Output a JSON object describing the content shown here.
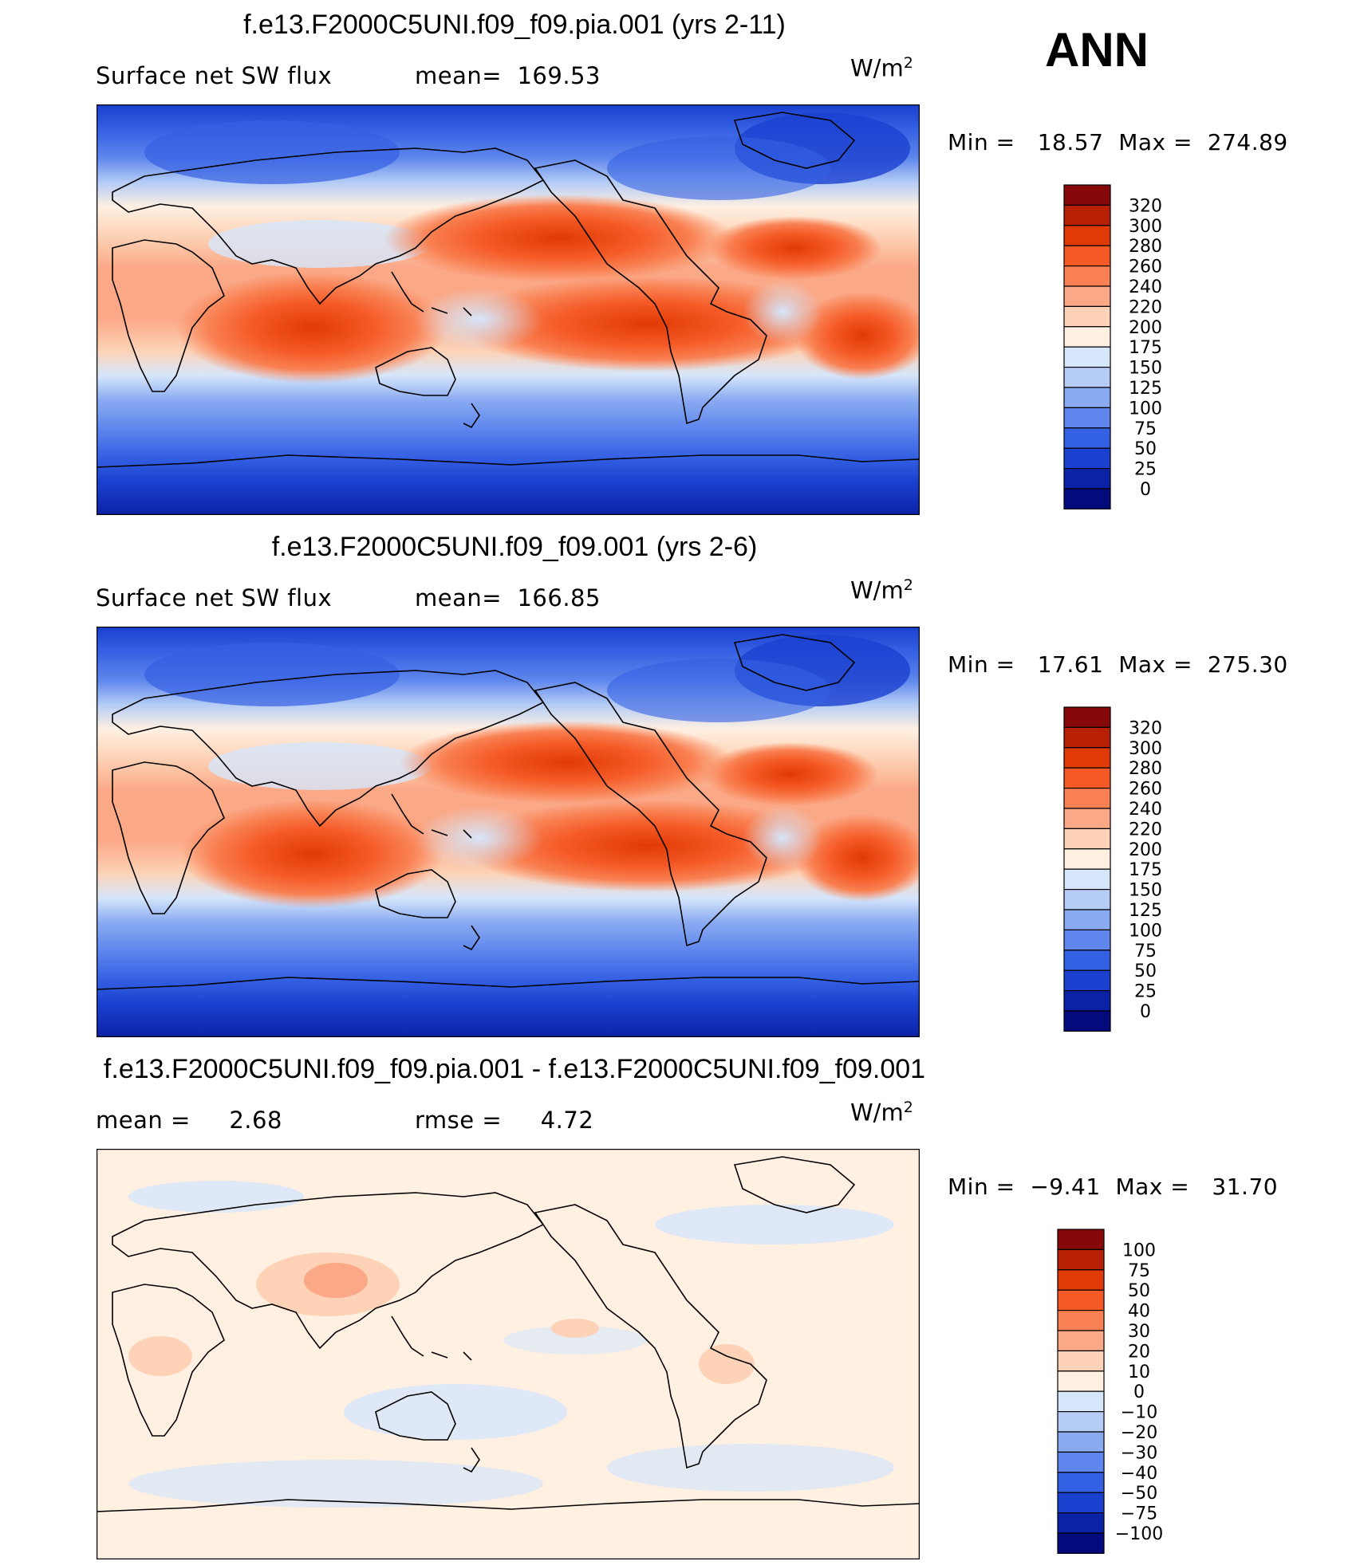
{
  "season": "ANN",
  "units_base": "W/m",
  "units_exp": "2",
  "panels": [
    {
      "title": "f.e13.F2000C5UNI.f09_f09.pia.001 (yrs 2-11)",
      "left_text": "Surface net SW flux",
      "right_text": "mean=  169.53",
      "min_text": "Min =   18.57",
      "max_text": "Max =  274.89"
    },
    {
      "title": "f.e13.F2000C5UNI.f09_f09.001 (yrs 2-6)",
      "left_text": "Surface net SW flux",
      "right_text": "mean=  166.85",
      "min_text": "Min =   17.61",
      "max_text": "Max =  275.30"
    },
    {
      "title": "f.e13.F2000C5UNI.f09_f09.pia.001 - f.e13.F2000C5UNI.f09_f09.001",
      "left_text": "mean =     2.68",
      "right_text": "rmse =     4.72",
      "min_text": "Min =  −9.41",
      "max_text": "Max =   31.70"
    }
  ],
  "chart_data": [
    {
      "type": "heatmap",
      "title": "f.e13.F2000C5UNI.f09_f09.pia.001 (yrs 2-11)",
      "variable": "Surface net SW flux",
      "units": "W/m2",
      "mean": 169.53,
      "min": 18.57,
      "max": 274.89,
      "colorbar": {
        "labels": [
          "320",
          "300",
          "280",
          "260",
          "240",
          "220",
          "200",
          "175",
          "150",
          "125",
          "100",
          "75",
          "50",
          "25",
          "0"
        ],
        "colors": [
          "#860808",
          "#b82004",
          "#e03a06",
          "#f55a26",
          "#f98052",
          "#fba886",
          "#fdd2b6",
          "#fff0e2",
          "#d6e6fb",
          "#b4ccf6",
          "#8aabf2",
          "#5e86ec",
          "#3460e3",
          "#1a40cf",
          "#0c22a6",
          "#020a7c"
        ]
      }
    },
    {
      "type": "heatmap",
      "title": "f.e13.F2000C5UNI.f09_f09.001 (yrs 2-6)",
      "variable": "Surface net SW flux",
      "units": "W/m2",
      "mean": 166.85,
      "min": 17.61,
      "max": 275.3,
      "colorbar": {
        "labels": [
          "320",
          "300",
          "280",
          "260",
          "240",
          "220",
          "200",
          "175",
          "150",
          "125",
          "100",
          "75",
          "50",
          "25",
          "0"
        ],
        "colors": [
          "#860808",
          "#b82004",
          "#e03a06",
          "#f55a26",
          "#f98052",
          "#fba886",
          "#fdd2b6",
          "#fff0e2",
          "#d6e6fb",
          "#b4ccf6",
          "#8aabf2",
          "#5e86ec",
          "#3460e3",
          "#1a40cf",
          "#0c22a6",
          "#020a7c"
        ]
      }
    },
    {
      "type": "heatmap",
      "title": "f.e13.F2000C5UNI.f09_f09.pia.001 - f.e13.F2000C5UNI.f09_f09.001",
      "units": "W/m2",
      "mean": 2.68,
      "rmse": 4.72,
      "min": -9.41,
      "max": 31.7,
      "colorbar": {
        "labels": [
          "100",
          "75",
          "50",
          "40",
          "30",
          "20",
          "10",
          "0",
          "−10",
          "−20",
          "−30",
          "−40",
          "−50",
          "−75",
          "−100"
        ],
        "colors": [
          "#860808",
          "#b82004",
          "#e03a06",
          "#f55a26",
          "#f98052",
          "#fba886",
          "#fdd2b6",
          "#fff0e2",
          "#d6e6fb",
          "#b4ccf6",
          "#8aabf2",
          "#5e86ec",
          "#3460e3",
          "#1a40cf",
          "#0c22a6",
          "#020a7c"
        ]
      }
    }
  ]
}
